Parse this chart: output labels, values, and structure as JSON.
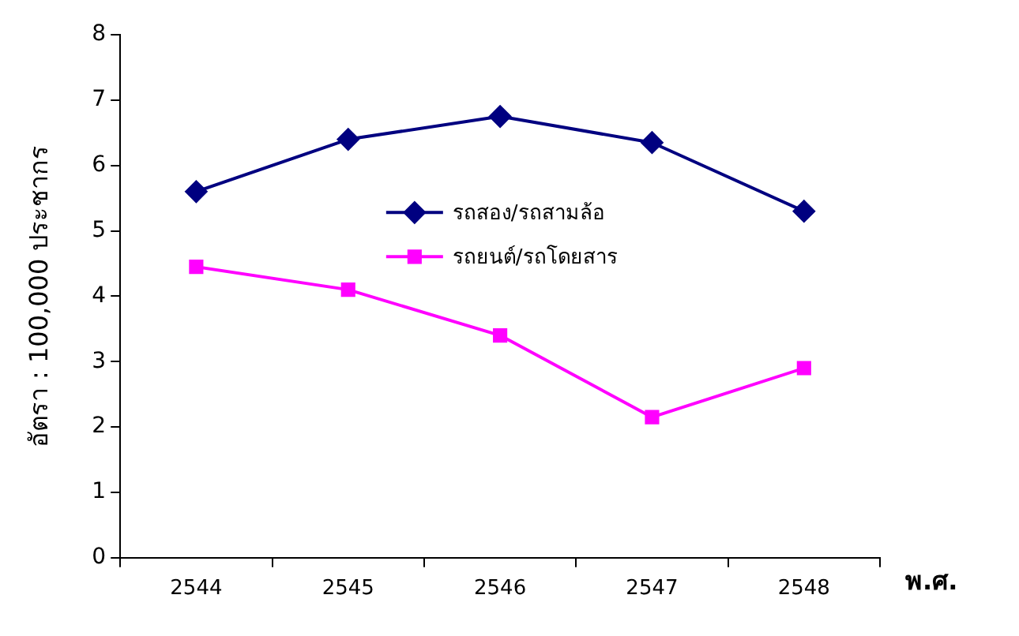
{
  "chart_data": {
    "type": "line",
    "xlabel": "พ.ศ.",
    "ylabel": "อัตรา : 100,000 ประชากร",
    "categories": [
      "2544",
      "2545",
      "2546",
      "2547",
      "2548"
    ],
    "series": [
      {
        "name": "รถสอง/รถสามล้อ",
        "color": "#000080",
        "marker": "diamond",
        "values": [
          5.6,
          6.4,
          6.75,
          6.35,
          5.3
        ]
      },
      {
        "name": "รถยนต์/รถโดยสาร",
        "color": "#ff00ff",
        "marker": "square",
        "values": [
          4.45,
          4.1,
          3.4,
          2.15,
          2.9
        ]
      }
    ],
    "ylim": [
      0,
      8
    ],
    "yticks": [
      0,
      1,
      2,
      3,
      4,
      5,
      6,
      7,
      8
    ],
    "grid": false,
    "legend": "center"
  }
}
